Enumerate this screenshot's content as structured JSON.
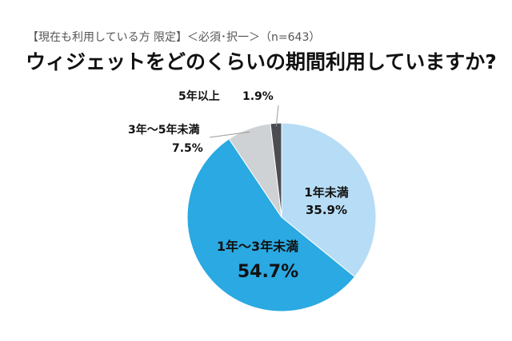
{
  "header": {
    "subtitle": "【現在も利用している方 限定】＜必須･択一＞（n=643）",
    "title": "ウィジェットをどのくらいの期間利用していますか?"
  },
  "chart_data": {
    "type": "pie",
    "slices": [
      {
        "label": "1年未満",
        "value": 35.9,
        "display": "35.9%",
        "color": "#b7dcf5"
      },
      {
        "label": "1年〜3年未満",
        "value": 54.7,
        "display": "54.7%",
        "color": "#2aa9e2"
      },
      {
        "label": "3年〜5年未満",
        "value": 7.5,
        "display": "7.5%",
        "color": "#cfd2d5"
      },
      {
        "label": "5年以上",
        "value": 1.9,
        "display": "1.9%",
        "color": "#4a4d51"
      }
    ],
    "start": "12 o'clock",
    "direction": "clockwise"
  }
}
